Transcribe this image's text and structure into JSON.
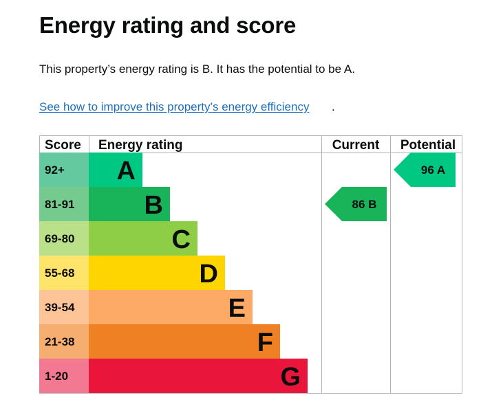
{
  "page": {
    "title": "Energy rating and score",
    "summary": "This property’s energy rating is B. It has the potential to be A.",
    "improve_link": "See how to improve this property’s energy efficiency",
    "link_suffix": "."
  },
  "chart_data": {
    "type": "bar",
    "headers": {
      "score": "Score",
      "rating": "Energy rating",
      "current": "Current",
      "potential": "Potential"
    },
    "bands": [
      {
        "score": "92+",
        "letter": "A",
        "min": 92,
        "max": null,
        "color": "#00c781",
        "score_color": "#65c9a0"
      },
      {
        "score": "81-91",
        "letter": "B",
        "min": 81,
        "max": 91,
        "color": "#19b459",
        "score_color": "#75cb8d"
      },
      {
        "score": "69-80",
        "letter": "C",
        "min": 69,
        "max": 80,
        "color": "#8dce46",
        "score_color": "#bae08a"
      },
      {
        "score": "55-68",
        "letter": "D",
        "min": 55,
        "max": 68,
        "color": "#ffd500",
        "score_color": "#ffe46b"
      },
      {
        "score": "39-54",
        "letter": "E",
        "min": 39,
        "max": 54,
        "color": "#fcaa65",
        "score_color": "#fdc597"
      },
      {
        "score": "21-38",
        "letter": "F",
        "min": 21,
        "max": 38,
        "color": "#ef8023",
        "score_color": "#f5ad70"
      },
      {
        "score": "1-20",
        "letter": "G",
        "min": 1,
        "max": 20,
        "color": "#e9153b",
        "score_color": "#f37891"
      }
    ],
    "current": {
      "value": 86,
      "band": "B",
      "label": "86  B",
      "color": "#19b459"
    },
    "potential": {
      "value": 96,
      "band": "A",
      "label": "96  A",
      "color": "#00c781"
    }
  }
}
